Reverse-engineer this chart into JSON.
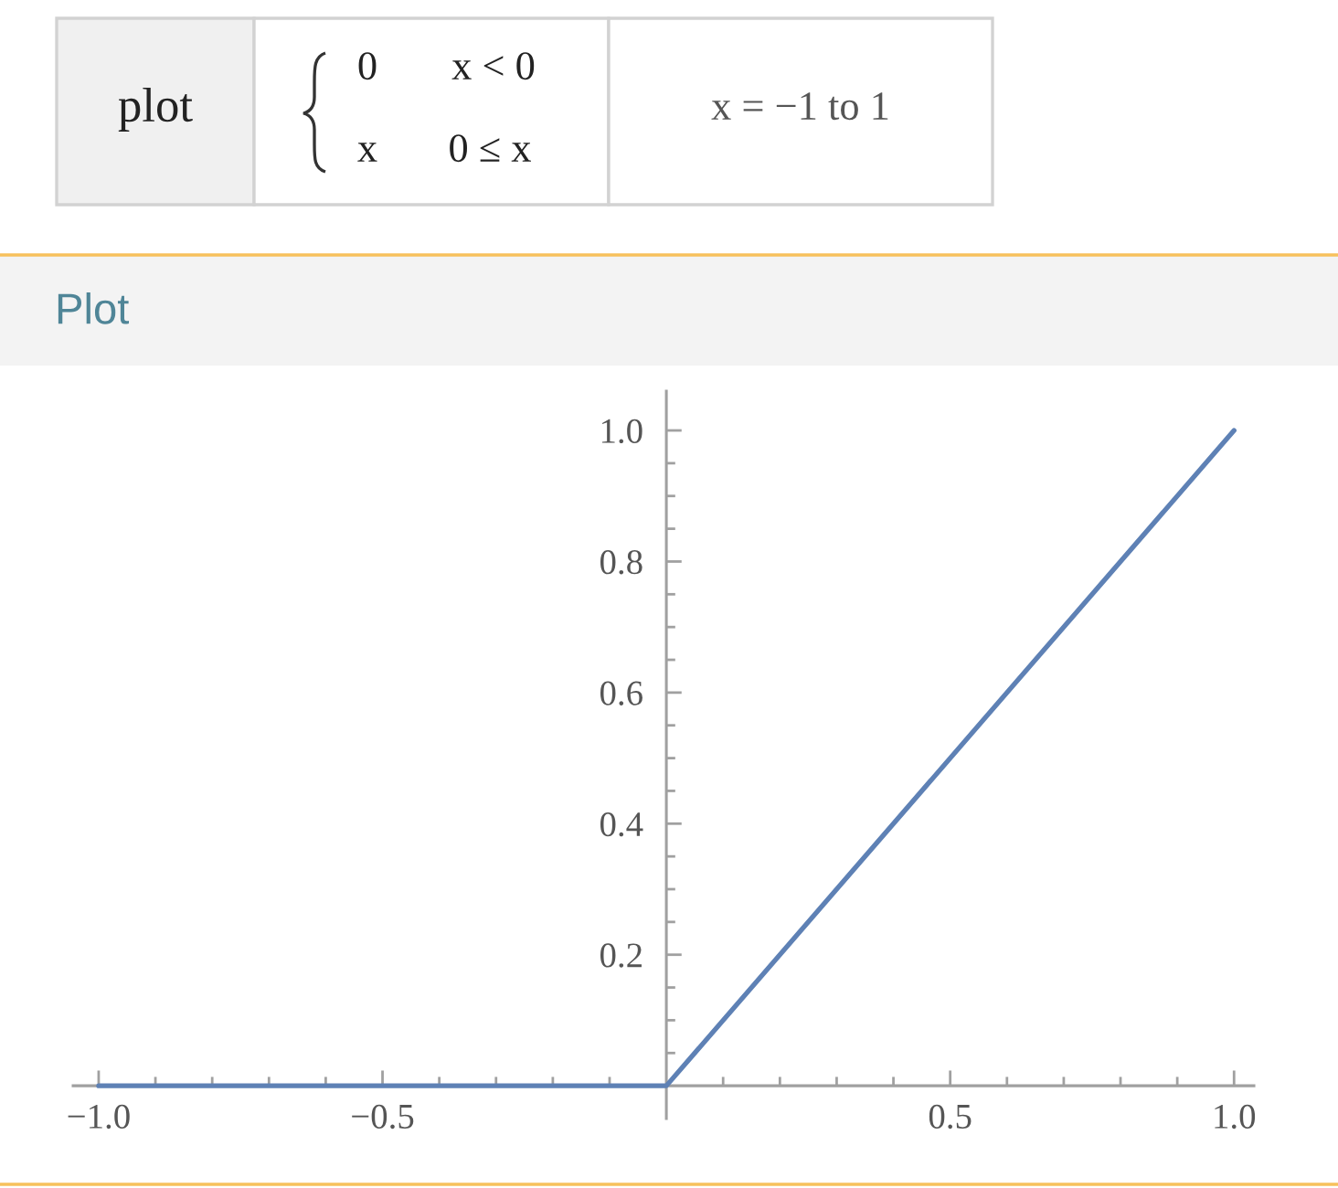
{
  "chart_data": {
    "type": "line",
    "title": "Plot",
    "annotations": [
      "plot",
      "0",
      "x < 0",
      "x",
      "0 ≤ x",
      "x = −1 to 1"
    ],
    "x": [
      -1,
      0,
      1
    ],
    "series": [
      {
        "color": "#5e81b5",
        "values": [
          0,
          0,
          1
        ]
      }
    ],
    "line_style": "solid",
    "xlim": [
      -1.045,
      1.035
    ],
    "ylim": [
      -0.05,
      1.06
    ],
    "xticks": [
      {
        "value": -1,
        "label": "−1.0"
      },
      {
        "value": -0.9,
        "label": null
      },
      {
        "value": -0.8,
        "label": null
      },
      {
        "value": -0.7,
        "label": null
      },
      {
        "value": -0.6,
        "label": null
      },
      {
        "value": -0.5,
        "label": "−0.5"
      },
      {
        "value": -0.4,
        "label": null
      },
      {
        "value": -0.3,
        "label": null
      },
      {
        "value": -0.2,
        "label": null
      },
      {
        "value": -0.1,
        "label": null
      },
      {
        "value": 0.1,
        "label": null
      },
      {
        "value": 0.2,
        "label": null
      },
      {
        "value": 0.3,
        "label": null
      },
      {
        "value": 0.4,
        "label": null
      },
      0.5,
      {
        "value": 0.6,
        "label": null
      },
      {
        "value": 0.7,
        "label": null
      },
      {
        "value": 0.8,
        "label": null
      },
      {
        "value": 0.9,
        "label": null
      },
      {
        "value": 1,
        "label": "1.0"
      }
    ],
    "yticks": [
      {
        "value": 0.05,
        "label": null
      },
      {
        "value": 0.1,
        "label": null
      },
      {
        "value": 0.15,
        "label": null
      },
      0.2,
      {
        "value": 0.25,
        "label": null
      },
      {
        "value": 0.3,
        "label": null
      },
      {
        "value": 0.35,
        "label": null
      },
      0.4,
      {
        "value": 0.45,
        "label": null
      },
      {
        "value": 0.5,
        "label": null
      },
      {
        "value": 0.55,
        "label": null
      },
      0.6,
      {
        "value": 0.65,
        "label": null
      },
      {
        "value": 0.7,
        "label": null
      },
      {
        "value": 0.75,
        "label": null
      },
      0.8,
      {
        "value": 0.85,
        "label": null
      },
      {
        "value": 0.9,
        "label": null
      },
      {
        "value": 0.95,
        "label": null
      },
      {
        "value": 1,
        "label": "1.0"
      }
    ]
  }
}
